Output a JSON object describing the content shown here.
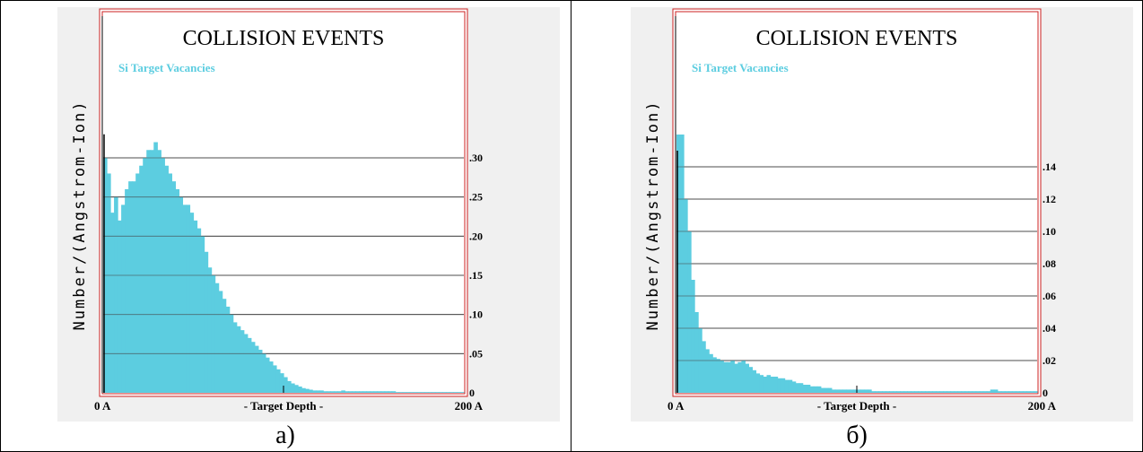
{
  "captions": [
    "а)",
    "б)"
  ],
  "chart_data": [
    {
      "type": "bar",
      "title": "COLLISION EVENTS",
      "legend": "Si Target Vacancies",
      "ylabel": "Number/(Angstrom-Ion)",
      "xlabel": "- Target Depth -",
      "x_tick_labels": [
        "0 A",
        "200 A"
      ],
      "xlim": [
        0,
        200
      ],
      "ylim": [
        0,
        0.33
      ],
      "y_ticks": [
        0,
        0.05,
        0.1,
        0.15,
        0.2,
        0.25,
        0.3
      ],
      "y_tick_labels": [
        "0",
        ".05",
        ".10",
        ".15",
        ".20",
        ".25",
        ".30"
      ],
      "bar_color": "#5ccde0",
      "x": [
        1,
        3,
        5,
        7,
        9,
        11,
        13,
        15,
        17,
        19,
        21,
        23,
        25,
        27,
        29,
        31,
        33,
        35,
        37,
        39,
        41,
        43,
        45,
        47,
        49,
        51,
        53,
        55,
        57,
        59,
        61,
        63,
        65,
        67,
        69,
        71,
        73,
        75,
        77,
        79,
        81,
        83,
        85,
        87,
        89,
        91,
        93,
        95,
        97,
        99,
        101,
        103,
        105,
        107,
        109,
        111,
        113,
        115,
        117,
        119,
        121,
        123,
        125,
        127,
        129,
        131,
        133,
        135,
        137,
        139,
        141,
        143,
        145,
        147,
        149,
        151,
        153,
        155,
        157,
        159,
        161,
        163,
        165,
        167,
        169,
        171,
        173,
        175,
        177,
        179,
        181,
        183,
        185,
        187,
        189,
        191,
        193,
        195,
        197,
        199
      ],
      "values": [
        0.3,
        0.28,
        0.23,
        0.25,
        0.22,
        0.24,
        0.26,
        0.27,
        0.27,
        0.28,
        0.29,
        0.3,
        0.31,
        0.31,
        0.32,
        0.31,
        0.3,
        0.29,
        0.28,
        0.27,
        0.26,
        0.25,
        0.24,
        0.24,
        0.23,
        0.22,
        0.21,
        0.2,
        0.18,
        0.16,
        0.15,
        0.14,
        0.13,
        0.12,
        0.11,
        0.1,
        0.09,
        0.085,
        0.08,
        0.075,
        0.07,
        0.065,
        0.06,
        0.055,
        0.05,
        0.045,
        0.04,
        0.035,
        0.03,
        0.025,
        0.02,
        0.015,
        0.012,
        0.01,
        0.008,
        0.006,
        0.005,
        0.004,
        0.003,
        0.003,
        0.003,
        0.002,
        0.002,
        0.002,
        0.002,
        0.002,
        0.003,
        0.002,
        0.002,
        0.002,
        0.002,
        0.002,
        0.002,
        0.002,
        0.002,
        0.002,
        0.002,
        0.002,
        0.002,
        0.002,
        0.002,
        0.001,
        0.001,
        0.001,
        0.001,
        0.001,
        0.001,
        0.001,
        0.001,
        0.001,
        0.001,
        0.001,
        0.001,
        0.001,
        0.001,
        0.001,
        0.001,
        0.001,
        0.001,
        0.001
      ],
      "surface_spike": 0.33
    },
    {
      "type": "bar",
      "title": "COLLISION EVENTS",
      "legend": "Si Target Vacancies",
      "ylabel": "Number/(Angstrom-Ion)",
      "xlabel": "- Target Depth -",
      "x_tick_labels": [
        "0 A",
        "200 A"
      ],
      "xlim": [
        0,
        200
      ],
      "ylim": [
        0,
        0.165
      ],
      "y_ticks": [
        0,
        0.02,
        0.04,
        0.06,
        0.08,
        0.1,
        0.12,
        0.14
      ],
      "y_tick_labels": [
        "0",
        ".02",
        ".04",
        ".06",
        ".08",
        ".10",
        ".12",
        ".14"
      ],
      "bar_color": "#5ccde0",
      "x": [
        1,
        3,
        5,
        7,
        9,
        11,
        13,
        15,
        17,
        19,
        21,
        23,
        25,
        27,
        29,
        31,
        33,
        35,
        37,
        39,
        41,
        43,
        45,
        47,
        49,
        51,
        53,
        55,
        57,
        59,
        61,
        63,
        65,
        67,
        69,
        71,
        73,
        75,
        77,
        79,
        81,
        83,
        85,
        87,
        89,
        91,
        93,
        95,
        97,
        99,
        101,
        103,
        105,
        107,
        109,
        111,
        113,
        115,
        117,
        119,
        121,
        123,
        125,
        127,
        129,
        131,
        133,
        135,
        137,
        139,
        141,
        143,
        145,
        147,
        149,
        151,
        153,
        155,
        157,
        159,
        161,
        163,
        165,
        167,
        169,
        171,
        173,
        175,
        177,
        179,
        181,
        183,
        185,
        187,
        189,
        191,
        193,
        195,
        197,
        199
      ],
      "values": [
        0.16,
        0.16,
        0.12,
        0.1,
        0.07,
        0.05,
        0.04,
        0.032,
        0.027,
        0.024,
        0.022,
        0.021,
        0.02,
        0.019,
        0.019,
        0.02,
        0.018,
        0.019,
        0.02,
        0.018,
        0.016,
        0.014,
        0.012,
        0.011,
        0.01,
        0.011,
        0.01,
        0.01,
        0.009,
        0.009,
        0.008,
        0.008,
        0.007,
        0.006,
        0.006,
        0.005,
        0.005,
        0.004,
        0.004,
        0.004,
        0.003,
        0.003,
        0.003,
        0.002,
        0.002,
        0.002,
        0.002,
        0.002,
        0.002,
        0.002,
        0.002,
        0.002,
        0.002,
        0.002,
        0.001,
        0.001,
        0.001,
        0.001,
        0.001,
        0.001,
        0.001,
        0.001,
        0.001,
        0.001,
        0.001,
        0.001,
        0.001,
        0.001,
        0.001,
        0.001,
        0.001,
        0.001,
        0.001,
        0.001,
        0.001,
        0.001,
        0.001,
        0.001,
        0.001,
        0.001,
        0.001,
        0.001,
        0.001,
        0.001,
        0.001,
        0.001,
        0.001,
        0.002,
        0.002,
        0.001,
        0.001,
        0.001,
        0.001,
        0.001,
        0.001,
        0.001,
        0.001,
        0.001,
        0.001,
        0.001
      ],
      "surface_spike": 0.15
    }
  ]
}
